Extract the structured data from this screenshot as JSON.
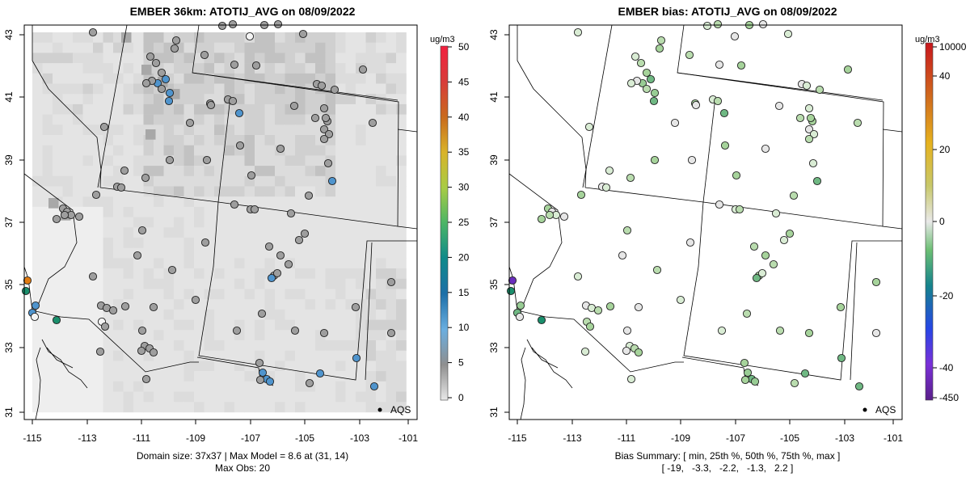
{
  "panels": [
    {
      "title": "EMBER 36km: ATOTIJ_AVG on 08/09/2022",
      "legend_title": "ug/m3",
      "legend_ticks": [
        "0",
        "5",
        "10",
        "15",
        "20",
        "25",
        "30",
        "35",
        "40",
        "45",
        "50"
      ],
      "caption_line1": "Domain size: 37x37 | Max Model = 8.6 at (31, 14)",
      "caption_line2": "Max Obs: 20",
      "aqs_label": "AQS"
    },
    {
      "title": "EMBER bias: ATOTIJ_AVG on 08/09/2022",
      "legend_title": "ug/m3",
      "legend_ticks": [
        "-450",
        "-40",
        "-20",
        "0",
        "20",
        "40",
        "10000"
      ],
      "caption_line1": "Bias Summary: [ min, 25th %, 50th %, 75th %, max ]",
      "caption_line2": "[ -19,   -3.3,   -2.2,   -1.3,   2.2 ]",
      "aqs_label": "AQS"
    }
  ],
  "x_tick_labels": [
    "-115",
    "-113",
    "-111",
    "-109",
    "-107",
    "-105",
    "-103",
    "-101"
  ],
  "y_tick_labels": [
    "31",
    "33",
    "35",
    "37",
    "39",
    "41",
    "43"
  ],
  "colors": {
    "model_fill": "#d6d6d6",
    "model_fill_dark": "#bcbcbc",
    "obs_gray": "#9e9e9e",
    "obs_blue": "#4f94cd",
    "obs_green_light": "#b9dcae",
    "obs_orange": "#e07b12",
    "obs_teal": "#1a8f6c",
    "obs_purple": "#6a2ebd"
  }
}
